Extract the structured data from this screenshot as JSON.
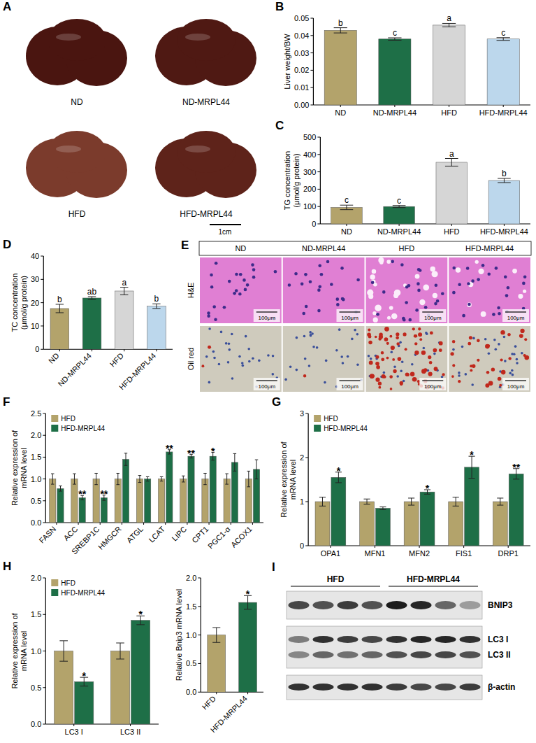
{
  "chart_data": [
    {
      "panel": "B",
      "type": "bar",
      "categories": [
        "ND",
        "ND-MRPL44",
        "HFD",
        "HFD-MRPL44"
      ],
      "values": [
        0.043,
        0.038,
        0.046,
        0.038
      ],
      "errors": [
        0.0015,
        0.0007,
        0.001,
        0.0008
      ],
      "significance": [
        "b",
        "c",
        "a",
        "c"
      ],
      "colors": [
        "#b3a36b",
        "#1e6f47",
        "#d6d6d6",
        "#bcd7ec"
      ],
      "y_label": "Liver weight/BW",
      "ylim": [
        0,
        0.05
      ],
      "yticks": [
        {
          "value": 0,
          "label": "0.00"
        },
        {
          "value": 0.01,
          "label": "0.01"
        },
        {
          "value": 0.02,
          "label": "0.02"
        },
        {
          "value": 0.03,
          "label": "0.03"
        },
        {
          "value": 0.04,
          "label": "0.04"
        },
        {
          "value": 0.05,
          "label": "0.05"
        }
      ]
    },
    {
      "panel": "C",
      "type": "bar",
      "categories": [
        "ND",
        "ND-MRPL44",
        "HFD",
        "HFD-MRPL44"
      ],
      "values": [
        95,
        100,
        355,
        250
      ],
      "errors": [
        13,
        6,
        22,
        12
      ],
      "significance": [
        "c",
        "c",
        "a",
        "b"
      ],
      "colors": [
        "#b3a36b",
        "#1e6f47",
        "#d6d6d6",
        "#bcd7ec"
      ],
      "y_label": [
        "TG concentration",
        "(μmol/g protein)"
      ],
      "ylim": [
        0,
        500
      ],
      "yticks": [
        0,
        100,
        200,
        300,
        400,
        500
      ]
    },
    {
      "panel": "D",
      "type": "bar",
      "categories": [
        "ND",
        "ND-MRPL44",
        "HFD",
        "HFD-MRPL44"
      ],
      "values": [
        17.5,
        22,
        25,
        18.5
      ],
      "errors": [
        1.8,
        0.6,
        1.6,
        1.0
      ],
      "significance": [
        "b",
        "ab",
        "a",
        "b"
      ],
      "colors": [
        "#b3a36b",
        "#1e6f47",
        "#d6d6d6",
        "#bcd7ec"
      ],
      "y_label": [
        "TC concentration",
        "(μmol/g protein)"
      ],
      "ylim": [
        0,
        40
      ],
      "yticks": [
        0,
        10,
        20,
        30,
        40
      ]
    },
    {
      "panel": "F",
      "type": "bar",
      "categories": [
        "FASN",
        "ACC",
        "SREBP1C",
        "HMGCR",
        "ATGL",
        "LCAT",
        "LIPC",
        "CPT1",
        "PGC1-α",
        "ACOX1"
      ],
      "series": [
        {
          "name": "HFD",
          "color": "#b3a36b",
          "values": [
            1,
            1,
            1,
            1,
            1,
            1,
            1,
            1,
            1,
            1
          ],
          "errors": [
            0.12,
            0.12,
            0.13,
            0.13,
            0.08,
            0.05,
            0.07,
            0.13,
            0.12,
            0.18
          ]
        },
        {
          "name": "HFD-MRPL44",
          "color": "#1e6f47",
          "values": [
            0.78,
            0.57,
            0.57,
            1.45,
            1.0,
            1.62,
            1.52,
            1.52,
            1.38,
            1.22
          ],
          "errors": [
            0.06,
            0.05,
            0.06,
            0.14,
            0.05,
            0.05,
            0.04,
            0.09,
            0.2,
            0.22
          ],
          "significance": [
            null,
            "**",
            "**",
            null,
            null,
            "**",
            "**",
            "*",
            null,
            null
          ]
        }
      ],
      "y_label": [
        "Relative  expression of",
        "mRNA level"
      ],
      "ylim": [
        0,
        2.5
      ],
      "yticks": [
        {
          "value": 0,
          "label": "0.0"
        },
        {
          "value": 0.5,
          "label": "0.5"
        },
        {
          "value": 1,
          "label": "1.0"
        },
        {
          "value": 1.5,
          "label": "1.5"
        },
        {
          "value": 2,
          "label": "2.0"
        },
        {
          "value": 2.5,
          "label": "2.5"
        }
      ],
      "legend": "top-left"
    },
    {
      "panel": "G",
      "type": "bar",
      "categories": [
        "OPA1",
        "MFN1",
        "MFN2",
        "FIS1",
        "DRP1"
      ],
      "series": [
        {
          "name": "HFD",
          "color": "#b3a36b",
          "values": [
            1,
            1,
            1,
            1,
            1
          ],
          "errors": [
            0.1,
            0.06,
            0.08,
            0.1,
            0.08
          ]
        },
        {
          "name": "HFD-MRPL44",
          "color": "#1e6f47",
          "values": [
            1.55,
            0.85,
            1.22,
            1.78,
            1.63
          ],
          "errors": [
            0.12,
            0.03,
            0.05,
            0.25,
            0.12
          ],
          "significance": [
            "*",
            null,
            "*",
            "*",
            "**"
          ]
        }
      ],
      "y_label": [
        "Relative expression of",
        "mRNA level"
      ],
      "ylim": [
        0,
        3
      ],
      "yticks": [
        0,
        1,
        2,
        3
      ],
      "legend": "top-left"
    },
    {
      "panel": "H",
      "type": "bar",
      "categories": [
        "LC3 I",
        "LC3 II"
      ],
      "series": [
        {
          "name": "HFD",
          "color": "#b3a36b",
          "values": [
            1,
            1
          ],
          "errors": [
            0.14,
            0.11
          ]
        },
        {
          "name": "HFD-MRPL44",
          "color": "#1e6f47",
          "values": [
            0.58,
            1.42
          ],
          "errors": [
            0.06,
            0.06
          ],
          "significance": [
            "*",
            "*"
          ]
        }
      ],
      "y_label": [
        "Relative  expression of",
        "mRNA level"
      ],
      "ylim": [
        0,
        2
      ],
      "yticks": [
        {
          "value": 0,
          "label": "0.0"
        },
        {
          "value": 0.5,
          "label": "0.5"
        },
        {
          "value": 1,
          "label": "1.0"
        },
        {
          "value": 1.5,
          "label": "1.5"
        },
        {
          "value": 2,
          "label": "2.0"
        }
      ],
      "legend": "top-left"
    },
    {
      "type": "bar",
      "categories": [
        "HFD",
        "HFD-MRPL44"
      ],
      "values": [
        1,
        1.57
      ],
      "errors": [
        0.13,
        0.12
      ],
      "significance": [
        null,
        "*"
      ],
      "colors": [
        "#b3a36b",
        "#1e6f47"
      ],
      "y_label": "Relative Bnip3 mRNA level",
      "ylim": [
        0,
        2
      ],
      "yticks": [
        {
          "value": 0,
          "label": "0.0"
        },
        {
          "value": 0.5,
          "label": "0.5"
        },
        {
          "value": 1,
          "label": "1.0"
        },
        {
          "value": 1.5,
          "label": "1.5"
        },
        {
          "value": 2,
          "label": "2.0"
        }
      ]
    }
  ],
  "photos": {
    "panel": "A",
    "labels": [
      "ND",
      "ND-MRPL44",
      "HFD",
      "HFD-MRPL44"
    ],
    "scale_bar": "1cm"
  },
  "histology": {
    "panel": "E",
    "columns": [
      "ND",
      "ND-MRPL44",
      "HFD",
      "HFD-MRPL44"
    ],
    "rows": [
      "H&E",
      "Oil red"
    ],
    "scale_bar": "100μm"
  },
  "blot": {
    "panel": "I",
    "groups": [
      "HFD",
      "HFD-MRPL44"
    ],
    "proteins": [
      "BNIP3",
      "LC3 I",
      "LC3 II",
      "β-actin"
    ]
  }
}
